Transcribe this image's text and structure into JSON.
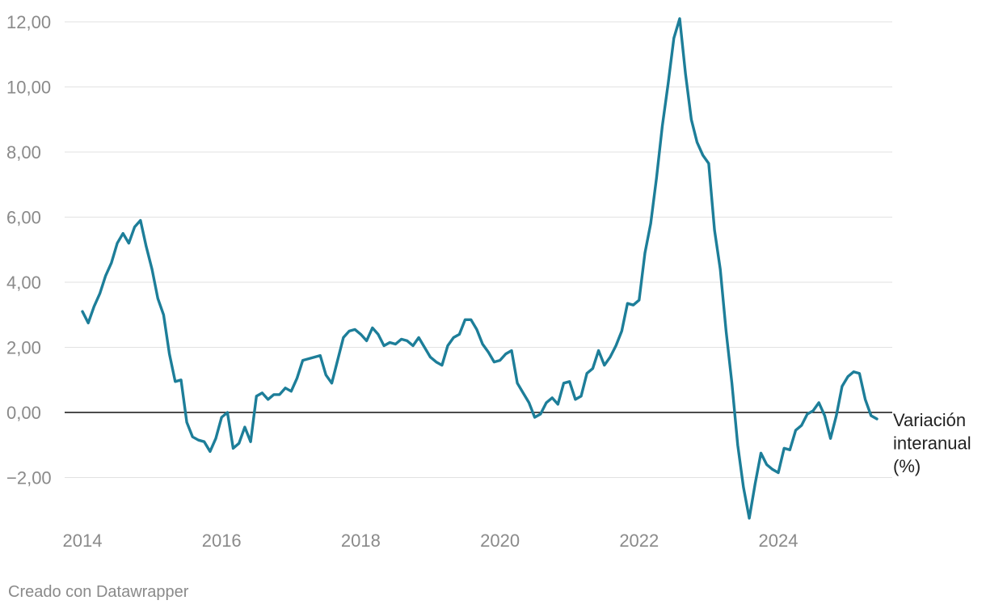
{
  "chart_data": {
    "type": "line",
    "title": "",
    "xlabel": "",
    "ylabel": "",
    "x_tick_labels": [
      "2014",
      "2016",
      "2018",
      "2020",
      "2022",
      "2024"
    ],
    "y_tick_labels": [
      "−2,00",
      "0,00",
      "2,00",
      "4,00",
      "6,00",
      "8,00",
      "10,00",
      "12,00"
    ],
    "y_ticks": [
      -2,
      0,
      2,
      4,
      6,
      8,
      10,
      12
    ],
    "ylim": [
      -3.4,
      12.4
    ],
    "xlim": [
      "2014-01",
      "2025-07"
    ],
    "grid": true,
    "zero_line": true,
    "series": [
      {
        "name": "Variación interanual (%)",
        "color": "#1d7e99",
        "points": [
          [
            "2014-01",
            3.1
          ],
          [
            "2014-02",
            2.75
          ],
          [
            "2014-03",
            3.25
          ],
          [
            "2014-04",
            3.65
          ],
          [
            "2014-05",
            4.2
          ],
          [
            "2014-06",
            4.6
          ],
          [
            "2014-07",
            5.2
          ],
          [
            "2014-08",
            5.5
          ],
          [
            "2014-09",
            5.2
          ],
          [
            "2014-10",
            5.7
          ],
          [
            "2014-11",
            5.9
          ],
          [
            "2014-12",
            5.1
          ],
          [
            "2015-01",
            4.4
          ],
          [
            "2015-02",
            3.5
          ],
          [
            "2015-03",
            3.0
          ],
          [
            "2015-04",
            1.8
          ],
          [
            "2015-05",
            0.95
          ],
          [
            "2015-06",
            1.0
          ],
          [
            "2015-07",
            -0.3
          ],
          [
            "2015-08",
            -0.75
          ],
          [
            "2015-09",
            -0.85
          ],
          [
            "2015-10",
            -0.9
          ],
          [
            "2015-11",
            -1.2
          ],
          [
            "2015-12",
            -0.8
          ],
          [
            "2016-01",
            -0.15
          ],
          [
            "2016-02",
            0.0
          ],
          [
            "2016-03",
            -1.1
          ],
          [
            "2016-04",
            -0.95
          ],
          [
            "2016-05",
            -0.45
          ],
          [
            "2016-06",
            -0.9
          ],
          [
            "2016-07",
            0.5
          ],
          [
            "2016-08",
            0.6
          ],
          [
            "2016-09",
            0.4
          ],
          [
            "2016-10",
            0.55
          ],
          [
            "2016-11",
            0.55
          ],
          [
            "2016-12",
            0.75
          ],
          [
            "2017-01",
            0.65
          ],
          [
            "2017-02",
            1.05
          ],
          [
            "2017-03",
            1.6
          ],
          [
            "2017-04",
            1.65
          ],
          [
            "2017-05",
            1.7
          ],
          [
            "2017-06",
            1.75
          ],
          [
            "2017-07",
            1.15
          ],
          [
            "2017-08",
            0.9
          ],
          [
            "2017-09",
            1.6
          ],
          [
            "2017-10",
            2.3
          ],
          [
            "2017-11",
            2.5
          ],
          [
            "2017-12",
            2.55
          ],
          [
            "2018-01",
            2.4
          ],
          [
            "2018-02",
            2.2
          ],
          [
            "2018-03",
            2.6
          ],
          [
            "2018-04",
            2.4
          ],
          [
            "2018-05",
            2.05
          ],
          [
            "2018-06",
            2.15
          ],
          [
            "2018-07",
            2.1
          ],
          [
            "2018-08",
            2.25
          ],
          [
            "2018-09",
            2.2
          ],
          [
            "2018-10",
            2.05
          ],
          [
            "2018-11",
            2.3
          ],
          [
            "2018-12",
            2.0
          ],
          [
            "2019-01",
            1.7
          ],
          [
            "2019-02",
            1.55
          ],
          [
            "2019-03",
            1.45
          ],
          [
            "2019-04",
            2.05
          ],
          [
            "2019-05",
            2.3
          ],
          [
            "2019-06",
            2.4
          ],
          [
            "2019-07",
            2.85
          ],
          [
            "2019-08",
            2.85
          ],
          [
            "2019-09",
            2.55
          ],
          [
            "2019-10",
            2.1
          ],
          [
            "2019-11",
            1.85
          ],
          [
            "2019-12",
            1.55
          ],
          [
            "2020-01",
            1.6
          ],
          [
            "2020-02",
            1.8
          ],
          [
            "2020-03",
            1.9
          ],
          [
            "2020-04",
            0.9
          ],
          [
            "2020-05",
            0.6
          ],
          [
            "2020-06",
            0.3
          ],
          [
            "2020-07",
            -0.15
          ],
          [
            "2020-08",
            -0.05
          ],
          [
            "2020-09",
            0.3
          ],
          [
            "2020-10",
            0.45
          ],
          [
            "2020-11",
            0.25
          ],
          [
            "2020-12",
            0.9
          ],
          [
            "2021-01",
            0.95
          ],
          [
            "2021-02",
            0.4
          ],
          [
            "2021-03",
            0.5
          ],
          [
            "2021-04",
            1.2
          ],
          [
            "2021-05",
            1.35
          ],
          [
            "2021-06",
            1.9
          ],
          [
            "2021-07",
            1.45
          ],
          [
            "2021-08",
            1.7
          ],
          [
            "2021-09",
            2.05
          ],
          [
            "2021-10",
            2.5
          ],
          [
            "2021-11",
            3.35
          ],
          [
            "2021-12",
            3.3
          ],
          [
            "2022-01",
            3.45
          ],
          [
            "2022-02",
            4.9
          ],
          [
            "2022-03",
            5.8
          ],
          [
            "2022-04",
            7.2
          ],
          [
            "2022-05",
            8.8
          ],
          [
            "2022-06",
            10.1
          ],
          [
            "2022-07",
            11.5
          ],
          [
            "2022-08",
            12.1
          ],
          [
            "2022-09",
            10.4
          ],
          [
            "2022-10",
            9.0
          ],
          [
            "2022-11",
            8.3
          ],
          [
            "2022-12",
            7.9
          ],
          [
            "2023-01",
            7.65
          ],
          [
            "2023-02",
            5.6
          ],
          [
            "2023-03",
            4.4
          ],
          [
            "2023-04",
            2.5
          ],
          [
            "2023-05",
            0.9
          ],
          [
            "2023-06",
            -1.0
          ],
          [
            "2023-07",
            -2.3
          ],
          [
            "2023-08",
            -3.25
          ],
          [
            "2023-09",
            -2.2
          ],
          [
            "2023-10",
            -1.25
          ],
          [
            "2023-11",
            -1.6
          ],
          [
            "2023-12",
            -1.75
          ],
          [
            "2024-01",
            -1.85
          ],
          [
            "2024-02",
            -1.1
          ],
          [
            "2024-03",
            -1.15
          ],
          [
            "2024-04",
            -0.55
          ],
          [
            "2024-05",
            -0.4
          ],
          [
            "2024-06",
            -0.05
          ],
          [
            "2024-07",
            0.05
          ],
          [
            "2024-08",
            0.3
          ],
          [
            "2024-09",
            -0.1
          ],
          [
            "2024-10",
            -0.8
          ],
          [
            "2024-11",
            -0.1
          ],
          [
            "2024-12",
            0.8
          ],
          [
            "2025-01",
            1.1
          ],
          [
            "2025-02",
            1.25
          ],
          [
            "2025-03",
            1.2
          ],
          [
            "2025-04",
            0.4
          ],
          [
            "2025-05",
            -0.1
          ],
          [
            "2025-06",
            -0.2
          ]
        ]
      }
    ]
  },
  "series_label_lines": [
    "Variación",
    "interanual",
    "(%)"
  ],
  "credit": "Creado con Datawrapper"
}
